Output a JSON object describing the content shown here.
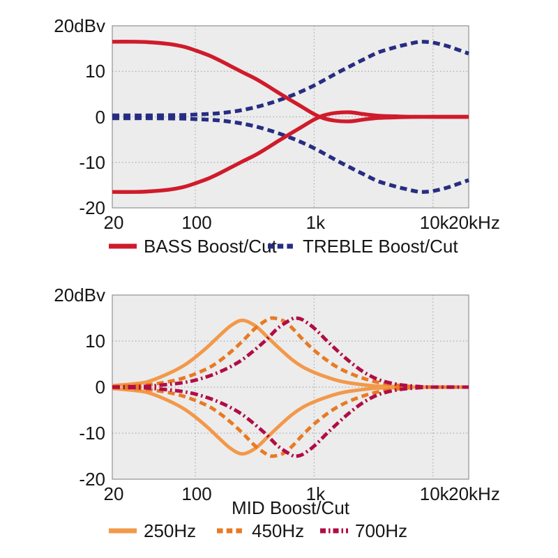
{
  "figure": {
    "background": "#ffffff",
    "palette": {
      "plot_background": "#ececec",
      "plot_border": "#999999",
      "gridline": "#a9a9a9",
      "text": "#161616",
      "bass_red": "#cf1b2b",
      "treble_navy": "#272d82",
      "mid250_orange": "#f2994a",
      "mid450_orange": "#e87a24",
      "mid700_maroon": "#b00d45"
    }
  },
  "chart_data": [
    {
      "type": "line",
      "title": "",
      "xlabel": "",
      "ylabel": "20dBv",
      "x_scale": "log",
      "x_range_hz": [
        20,
        20000
      ],
      "ylim": [
        -20,
        20
      ],
      "grid": true,
      "x_ticks": [
        {
          "hz": 20,
          "label": "20"
        },
        {
          "hz": 100,
          "label": "100"
        },
        {
          "hz": 1000,
          "label": "1k"
        },
        {
          "hz": 10000,
          "label": "10k"
        },
        {
          "hz": 20000,
          "label": "20kHz"
        }
      ],
      "x_grid_hz": [
        100,
        1000,
        10000
      ],
      "y_ticks": [
        {
          "value": 20,
          "label": "20dBv"
        },
        {
          "value": 10,
          "label": "10"
        },
        {
          "value": 0,
          "label": "0"
        },
        {
          "value": -10,
          "label": "-10"
        },
        {
          "value": -20,
          "label": "-20"
        }
      ],
      "y_grid_values": [
        10,
        0,
        -10
      ],
      "legend_position": "bottom",
      "series": [
        {
          "name": "TREBLE Boost/Cut",
          "color": "#272d82",
          "style": "dashed",
          "mirrored_cut": true,
          "points_hz_db": [
            [
              20,
              0.3
            ],
            [
              30,
              0.3
            ],
            [
              40,
              0.3
            ],
            [
              60,
              0.35
            ],
            [
              80,
              0.4
            ],
            [
              100,
              0.5
            ],
            [
              130,
              0.65
            ],
            [
              160,
              0.8
            ],
            [
              200,
              1.1
            ],
            [
              250,
              1.5
            ],
            [
              320,
              2.1
            ],
            [
              400,
              2.8
            ],
            [
              500,
              3.6
            ],
            [
              650,
              4.7
            ],
            [
              800,
              5.7
            ],
            [
              1000,
              6.9
            ],
            [
              1300,
              8.5
            ],
            [
              1600,
              9.8
            ],
            [
              2000,
              11.1
            ],
            [
              2600,
              12.6
            ],
            [
              3500,
              14.2
            ],
            [
              5000,
              15.4
            ],
            [
              6000,
              15.9
            ],
            [
              7000,
              16.3
            ],
            [
              8000,
              16.5
            ],
            [
              10000,
              16.3
            ],
            [
              13000,
              15.6
            ],
            [
              16000,
              14.8
            ],
            [
              20000,
              13.9
            ]
          ]
        },
        {
          "name": "BASS Boost/Cut",
          "color": "#cf1b2b",
          "style": "solid",
          "mirrored_cut": true,
          "points_hz_db": [
            [
              20,
              16.5
            ],
            [
              30,
              16.5
            ],
            [
              40,
              16.4
            ],
            [
              60,
              16.0
            ],
            [
              80,
              15.4
            ],
            [
              100,
              14.6
            ],
            [
              130,
              13.5
            ],
            [
              160,
              12.4
            ],
            [
              200,
              11.1
            ],
            [
              250,
              9.8
            ],
            [
              320,
              8.4
            ],
            [
              400,
              6.9
            ],
            [
              500,
              5.3
            ],
            [
              650,
              3.5
            ],
            [
              800,
              2.1
            ],
            [
              1000,
              0.6
            ],
            [
              1200,
              -0.3
            ],
            [
              1500,
              -0.85
            ],
            [
              2000,
              -1.0
            ],
            [
              2600,
              -0.6
            ],
            [
              3500,
              -0.25
            ],
            [
              5000,
              -0.1
            ],
            [
              7000,
              0
            ],
            [
              10000,
              0
            ],
            [
              14000,
              0
            ],
            [
              20000,
              0
            ]
          ]
        }
      ],
      "legend_order": [
        "BASS Boost/Cut",
        "TREBLE Boost/Cut"
      ]
    },
    {
      "type": "line",
      "title": "",
      "xlabel": "MID Boost/Cut",
      "ylabel": "20dBv",
      "x_scale": "log",
      "x_range_hz": [
        20,
        20000
      ],
      "ylim": [
        -20,
        20
      ],
      "grid": true,
      "x_ticks": [
        {
          "hz": 20,
          "label": "20"
        },
        {
          "hz": 100,
          "label": "100"
        },
        {
          "hz": 1000,
          "label": "1k"
        },
        {
          "hz": 10000,
          "label": "10k"
        },
        {
          "hz": 20000,
          "label": "20kHz"
        }
      ],
      "x_grid_hz": [
        100,
        1000,
        10000
      ],
      "y_ticks": [
        {
          "value": 20,
          "label": "20dBv"
        },
        {
          "value": 10,
          "label": "10"
        },
        {
          "value": 0,
          "label": "0"
        },
        {
          "value": -10,
          "label": "-10"
        },
        {
          "value": -20,
          "label": "-20"
        }
      ],
      "y_grid_values": [
        10,
        0,
        -10
      ],
      "legend_position": "bottom",
      "series": [
        {
          "name": "250Hz",
          "color": "#f2994a",
          "style": "solid",
          "mirrored_cut": true,
          "points_hz_db": [
            [
              20,
              0.3
            ],
            [
              30,
              0.7
            ],
            [
              40,
              1.2
            ],
            [
              60,
              3.0
            ],
            [
              80,
              4.7
            ],
            [
              100,
              6.5
            ],
            [
              130,
              9.0
            ],
            [
              160,
              11.2
            ],
            [
              200,
              13.4
            ],
            [
              250,
              14.5
            ],
            [
              320,
              13.3
            ],
            [
              400,
              11.0
            ],
            [
              500,
              8.6
            ],
            [
              650,
              6.0
            ],
            [
              800,
              4.4
            ],
            [
              1000,
              3.2
            ],
            [
              1300,
              2.1
            ],
            [
              1600,
              1.4
            ],
            [
              2000,
              0.9
            ],
            [
              2600,
              0.5
            ],
            [
              3500,
              0.2
            ],
            [
              5000,
              0.1
            ],
            [
              7000,
              0
            ],
            [
              10000,
              0
            ],
            [
              20000,
              0
            ]
          ]
        },
        {
          "name": "450Hz",
          "color": "#e87a24",
          "style": "dashed",
          "mirrored_cut": true,
          "points_hz_db": [
            [
              20,
              0.1
            ],
            [
              30,
              0.3
            ],
            [
              40,
              0.5
            ],
            [
              60,
              1.2
            ],
            [
              80,
              2.0
            ],
            [
              100,
              2.9
            ],
            [
              130,
              4.2
            ],
            [
              160,
              5.7
            ],
            [
              200,
              7.7
            ],
            [
              250,
              10.0
            ],
            [
              320,
              12.8
            ],
            [
              400,
              14.6
            ],
            [
              450,
              15.0
            ],
            [
              550,
              14.4
            ],
            [
              650,
              12.9
            ],
            [
              800,
              10.4
            ],
            [
              1000,
              8.0
            ],
            [
              1300,
              5.7
            ],
            [
              1600,
              4.2
            ],
            [
              2000,
              3.0
            ],
            [
              2600,
              1.9
            ],
            [
              3500,
              1.0
            ],
            [
              5000,
              0.4
            ],
            [
              7000,
              0.1
            ],
            [
              10000,
              0
            ],
            [
              20000,
              0
            ]
          ]
        },
        {
          "name": "700Hz",
          "color": "#b00d45",
          "style": "dash-dot",
          "mirrored_cut": true,
          "points_hz_db": [
            [
              20,
              0
            ],
            [
              30,
              0.1
            ],
            [
              40,
              0.2
            ],
            [
              60,
              0.6
            ],
            [
              80,
              1.0
            ],
            [
              100,
              1.5
            ],
            [
              130,
              2.4
            ],
            [
              160,
              3.3
            ],
            [
              200,
              4.5
            ],
            [
              250,
              6.0
            ],
            [
              320,
              8.2
            ],
            [
              400,
              10.4
            ],
            [
              500,
              12.9
            ],
            [
              650,
              14.8
            ],
            [
              700,
              15.0
            ],
            [
              800,
              14.6
            ],
            [
              1000,
              12.8
            ],
            [
              1300,
              9.9
            ],
            [
              1600,
              7.7
            ],
            [
              2000,
              5.5
            ],
            [
              2600,
              3.3
            ],
            [
              3500,
              1.6
            ],
            [
              5000,
              0.6
            ],
            [
              7000,
              0.2
            ],
            [
              10000,
              0
            ],
            [
              20000,
              0
            ]
          ]
        }
      ],
      "legend_order": [
        "250Hz",
        "450Hz",
        "700Hz"
      ]
    }
  ]
}
